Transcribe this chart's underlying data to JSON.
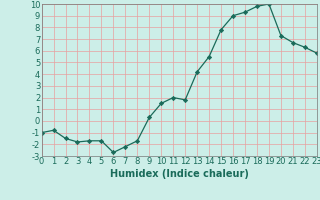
{
  "x": [
    0,
    1,
    2,
    3,
    4,
    5,
    6,
    7,
    8,
    9,
    10,
    11,
    12,
    13,
    14,
    15,
    16,
    17,
    18,
    19,
    20,
    21,
    22,
    23
  ],
  "y": [
    -1.0,
    -0.8,
    -1.5,
    -1.8,
    -1.7,
    -1.7,
    -2.7,
    -2.2,
    -1.7,
    0.3,
    1.5,
    2.0,
    1.8,
    4.2,
    5.5,
    7.8,
    9.0,
    9.3,
    9.8,
    10.0,
    7.3,
    6.7,
    6.3,
    5.8
  ],
  "xlabel": "Humidex (Indice chaleur)",
  "ylim": [
    -3,
    10
  ],
  "xlim": [
    0,
    23
  ],
  "yticks": [
    -3,
    -2,
    -1,
    0,
    1,
    2,
    3,
    4,
    5,
    6,
    7,
    8,
    9,
    10
  ],
  "xticks": [
    0,
    1,
    2,
    3,
    4,
    5,
    6,
    7,
    8,
    9,
    10,
    11,
    12,
    13,
    14,
    15,
    16,
    17,
    18,
    19,
    20,
    21,
    22,
    23
  ],
  "line_color": "#1a6b5a",
  "marker_color": "#1a6b5a",
  "bg_color": "#cceee8",
  "grid_color": "#e8a0a0",
  "xlabel_fontsize": 7,
  "tick_fontsize": 6,
  "label_color": "#1a6b5a"
}
